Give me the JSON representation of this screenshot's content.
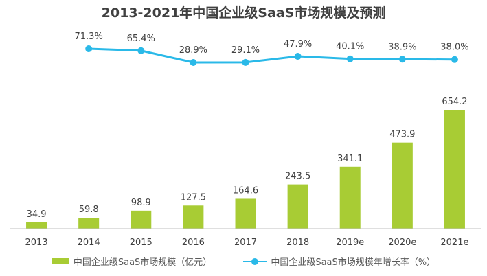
{
  "chart_data": {
    "type": "bar",
    "title": "2013-2021年中国企业级SaaS市场规模及预测",
    "categories": [
      "2013",
      "2014",
      "2015",
      "2016",
      "2017",
      "2018",
      "2019e",
      "2020e",
      "2021e"
    ],
    "series": [
      {
        "name": "中国企业级SaaS市场规模（亿元）",
        "type": "bar",
        "values": [
          34.9,
          59.8,
          98.9,
          127.5,
          164.6,
          243.5,
          341.1,
          473.9,
          654.2
        ],
        "labels": [
          "34.9",
          "59.8",
          "98.9",
          "127.5",
          "164.6",
          "243.5",
          "341.1",
          "473.9",
          "654.2"
        ]
      },
      {
        "name": "中国企业级SaaS市场规模年增长率（%）",
        "type": "line",
        "values": [
          null,
          71.3,
          65.4,
          28.9,
          29.1,
          47.9,
          40.1,
          38.9,
          38.0
        ],
        "labels": [
          "",
          "71.3%",
          "65.4%",
          "28.9%",
          "29.1%",
          "47.9%",
          "40.1%",
          "38.9%",
          "38.0%"
        ]
      }
    ],
    "legend_position": "bottom",
    "grid": false
  },
  "colors": {
    "bar": "#a8cc34",
    "line": "#2ab9e8",
    "axis": "#bfbfbf",
    "text": "#404040"
  }
}
